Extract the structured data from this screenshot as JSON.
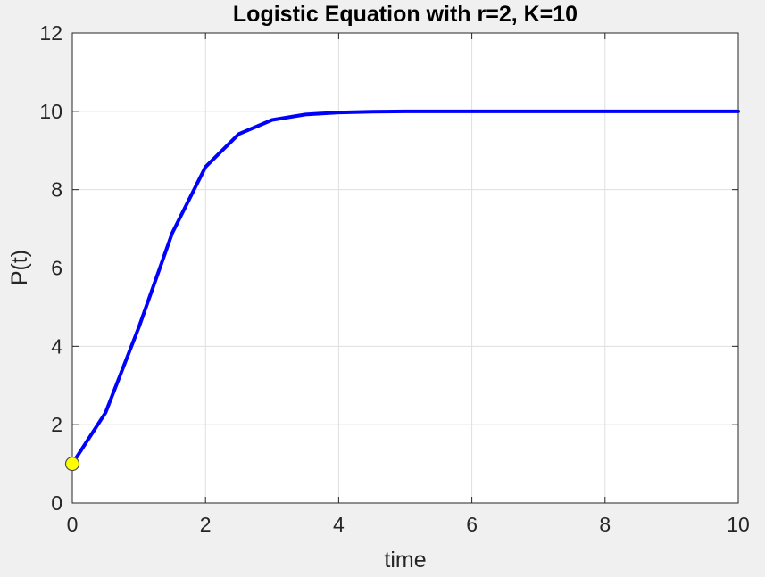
{
  "chart_data": {
    "type": "line",
    "title": "Logistic Equation with r=2, K=10",
    "xlabel": "time",
    "ylabel": "P(t)",
    "xlim": [
      0,
      10
    ],
    "ylim": [
      0,
      12
    ],
    "xticks": [
      0,
      2,
      4,
      6,
      8,
      10
    ],
    "yticks": [
      0,
      2,
      4,
      6,
      8,
      10,
      12
    ],
    "grid": true,
    "series": [
      {
        "color": "#0000ff",
        "x": [
          0,
          0.5,
          1,
          1.5,
          2,
          2.5,
          3,
          3.5,
          4,
          4.5,
          5,
          5.5,
          6,
          6.5,
          7,
          7.5,
          8,
          8.5,
          9,
          9.5,
          10
        ],
        "y": [
          1.0,
          2.31,
          4.49,
          6.89,
          8.58,
          9.42,
          9.78,
          9.92,
          9.97,
          9.99,
          10.0,
          10.0,
          10.0,
          10.0,
          10.0,
          10.0,
          10.0,
          10.0,
          10.0,
          10.0,
          10.0
        ]
      }
    ],
    "markers": [
      {
        "x": 0,
        "y": 1,
        "color": "#ffff00",
        "edge_color": "#4d4d4d"
      }
    ]
  }
}
